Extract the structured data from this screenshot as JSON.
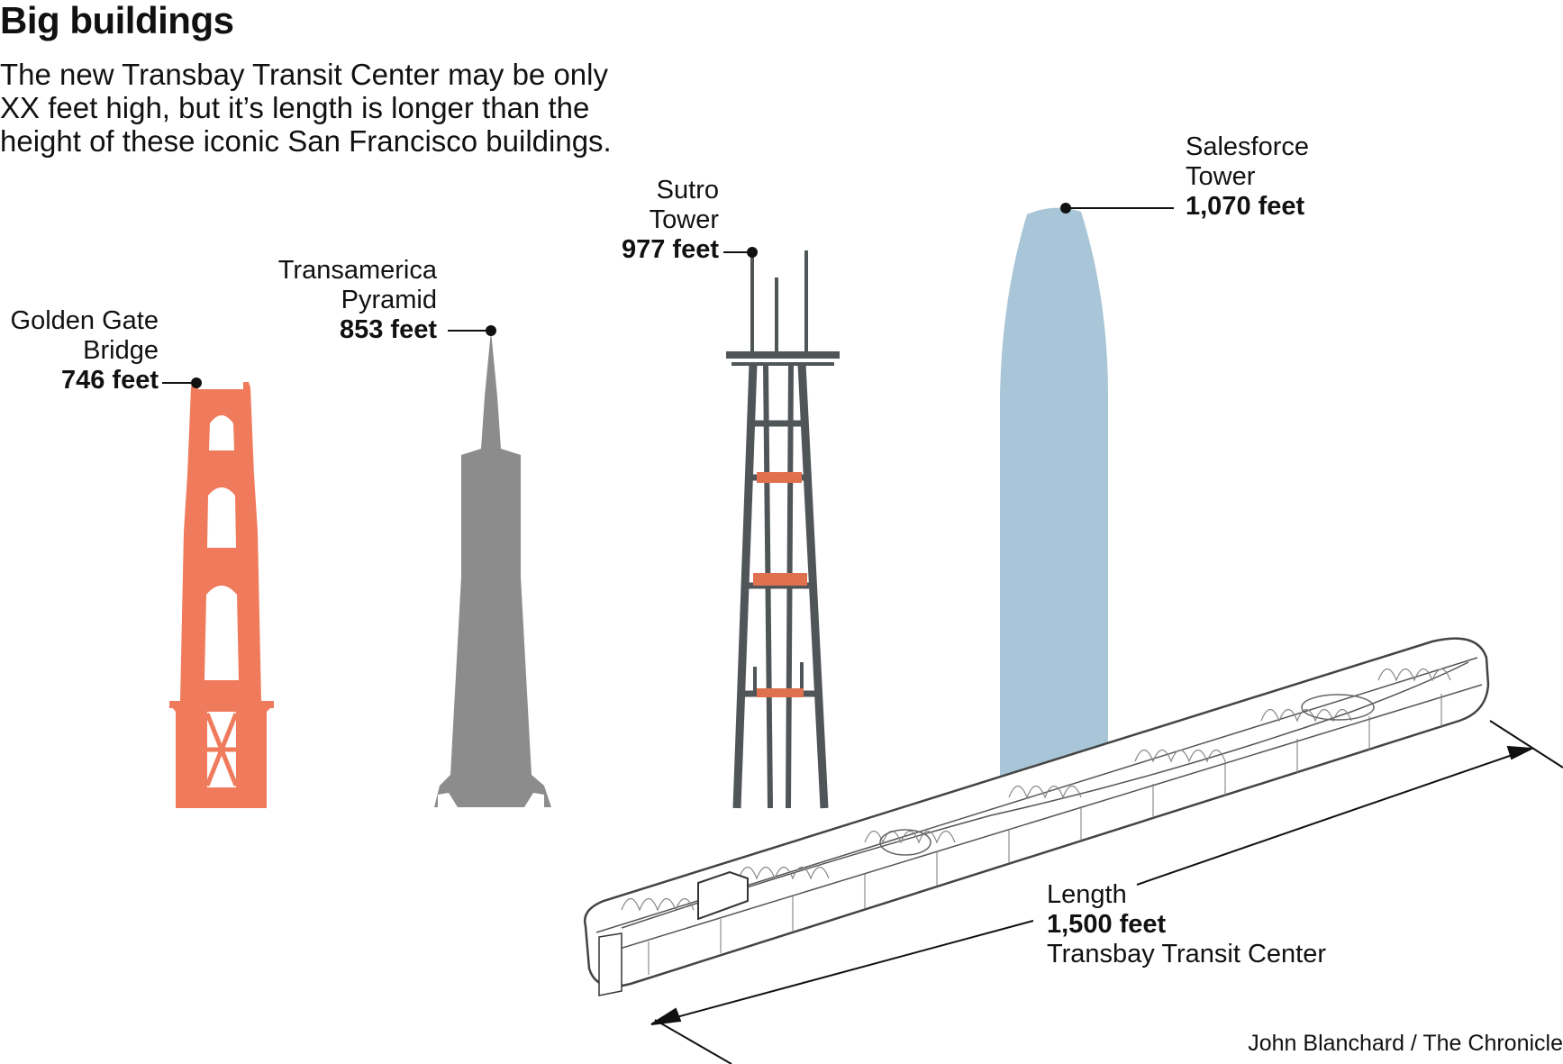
{
  "header": {
    "title": "Big buildings",
    "intro": "The new Transbay Transit Center may be only XX feet high, but it’s length is longer than the height of these iconic San Francisco buildings."
  },
  "buildings": [
    {
      "name_line1": "Golden Gate",
      "name_line2": "Bridge",
      "height_label": "746 feet",
      "height_ft": 746,
      "color": "#f07b5c"
    },
    {
      "name_line1": "Transamerica",
      "name_line2": "Pyramid",
      "height_label": "853 feet",
      "height_ft": 853,
      "color": "#8c8c8c"
    },
    {
      "name_line1": "Sutro",
      "name_line2": "Tower",
      "height_label": "977 feet",
      "height_ft": 977,
      "color": "#505558"
    },
    {
      "name_line1": "Salesforce",
      "name_line2": "Tower",
      "height_label": "1,070 feet",
      "height_ft": 1070,
      "color": "#a8c6d7"
    }
  ],
  "transit_center": {
    "label_top": "Length",
    "length_label": "1,500 feet",
    "name": "Transbay Transit Center",
    "length_ft": 1500
  },
  "credit": "John Blanchard / The Chronicle"
}
